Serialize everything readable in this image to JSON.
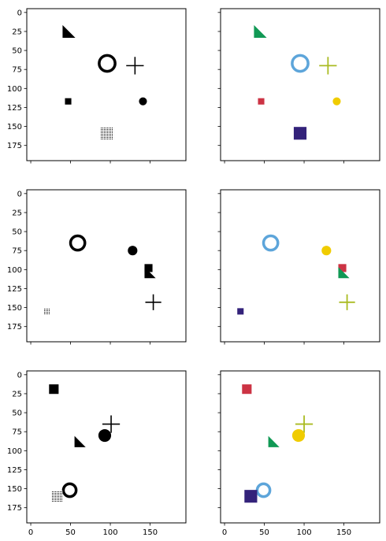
{
  "chart_data": {
    "type": "scatter",
    "layout": {
      "rows": 3,
      "cols": 2,
      "sharex": true,
      "sharey": true
    },
    "xlim": [
      -5,
      195
    ],
    "ylim": [
      195,
      -5
    ],
    "y_inverted": true,
    "xticks": [
      0,
      50,
      100,
      150
    ],
    "xtick_labels": [
      "0",
      "50",
      "100",
      "150"
    ],
    "yticks": [
      0,
      25,
      50,
      75,
      100,
      125,
      150,
      175
    ],
    "ytick_labels": [
      "0",
      "25",
      "50",
      "75",
      "100",
      "125",
      "150",
      "175"
    ],
    "grid": false,
    "colors": {
      "mono": "#000000",
      "ring": "#5DA5DA",
      "triangle": "#119955",
      "small_square": "#CC3344",
      "dot": "#F0CC00",
      "plus": "#AABB22",
      "big_square": "#33227A"
    },
    "panels": [
      {
        "row": 0,
        "col": 0,
        "style": "mono",
        "objects": [
          {
            "shape": "triangle",
            "x": 48,
            "y": 25,
            "size": 16
          },
          {
            "shape": "ring",
            "x": 96,
            "y": 67,
            "size": 24
          },
          {
            "shape": "plus",
            "x": 131,
            "y": 70,
            "size": 22
          },
          {
            "shape": "small_square",
            "x": 47,
            "y": 117,
            "size": 8
          },
          {
            "shape": "dot",
            "x": 141,
            "y": 117,
            "size": 10
          },
          {
            "shape": "big_square",
            "x": 96,
            "y": 159,
            "size": 16
          }
        ]
      },
      {
        "row": 0,
        "col": 1,
        "style": "color",
        "objects": [
          {
            "shape": "triangle",
            "x": 45,
            "y": 25,
            "size": 16
          },
          {
            "shape": "ring",
            "x": 95,
            "y": 67,
            "size": 24
          },
          {
            "shape": "plus",
            "x": 130,
            "y": 70,
            "size": 22
          },
          {
            "shape": "small_square",
            "x": 46,
            "y": 117,
            "size": 8
          },
          {
            "shape": "dot",
            "x": 141,
            "y": 117,
            "size": 10
          },
          {
            "shape": "big_square",
            "x": 95,
            "y": 159,
            "size": 16
          }
        ]
      },
      {
        "row": 1,
        "col": 0,
        "style": "mono",
        "objects": [
          {
            "shape": "ring",
            "x": 59,
            "y": 65,
            "size": 22
          },
          {
            "shape": "dot",
            "x": 128,
            "y": 75,
            "size": 12
          },
          {
            "shape": "small_square",
            "x": 148,
            "y": 98,
            "size": 10
          },
          {
            "shape": "triangle",
            "x": 150,
            "y": 104,
            "size": 14
          },
          {
            "shape": "plus",
            "x": 154,
            "y": 143,
            "size": 20
          },
          {
            "shape": "big_square",
            "x": 20,
            "y": 155,
            "size": 8
          }
        ]
      },
      {
        "row": 1,
        "col": 1,
        "style": "color",
        "objects": [
          {
            "shape": "ring",
            "x": 58,
            "y": 65,
            "size": 22
          },
          {
            "shape": "dot",
            "x": 128,
            "y": 75,
            "size": 12
          },
          {
            "shape": "small_square",
            "x": 148,
            "y": 98,
            "size": 10
          },
          {
            "shape": "triangle",
            "x": 150,
            "y": 104,
            "size": 14
          },
          {
            "shape": "plus",
            "x": 154,
            "y": 143,
            "size": 20
          },
          {
            "shape": "big_square",
            "x": 20,
            "y": 155,
            "size": 8
          }
        ]
      },
      {
        "row": 2,
        "col": 0,
        "style": "mono",
        "objects": [
          {
            "shape": "small_square",
            "x": 29,
            "y": 19,
            "size": 12
          },
          {
            "shape": "plus",
            "x": 101,
            "y": 65,
            "size": 22
          },
          {
            "shape": "dot",
            "x": 93,
            "y": 80,
            "size": 16
          },
          {
            "shape": "triangle",
            "x": 62,
            "y": 88,
            "size": 14
          },
          {
            "shape": "ring",
            "x": 49,
            "y": 152,
            "size": 20
          },
          {
            "shape": "big_square",
            "x": 33,
            "y": 160,
            "size": 14
          }
        ]
      },
      {
        "row": 2,
        "col": 1,
        "style": "color",
        "objects": [
          {
            "shape": "small_square",
            "x": 28,
            "y": 19,
            "size": 12
          },
          {
            "shape": "plus",
            "x": 100,
            "y": 65,
            "size": 22
          },
          {
            "shape": "dot",
            "x": 93,
            "y": 80,
            "size": 16
          },
          {
            "shape": "triangle",
            "x": 62,
            "y": 88,
            "size": 14
          },
          {
            "shape": "ring",
            "x": 49,
            "y": 152,
            "size": 20
          },
          {
            "shape": "big_square",
            "x": 33,
            "y": 160,
            "size": 16
          }
        ]
      }
    ]
  }
}
